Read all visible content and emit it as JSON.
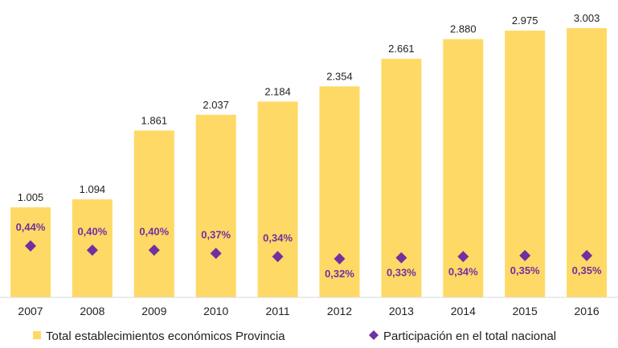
{
  "chart_data": {
    "type": "bar",
    "categories": [
      "2007",
      "2008",
      "2009",
      "2010",
      "2011",
      "2012",
      "2013",
      "2014",
      "2015",
      "2016"
    ],
    "series": [
      {
        "name": "Total establecimientos económicos Provincia",
        "type": "bar",
        "values": [
          1005,
          1094,
          1861,
          2037,
          2184,
          2354,
          2661,
          2880,
          2975,
          3003
        ],
        "labels": [
          "1.005",
          "1.094",
          "1.861",
          "2.037",
          "2.184",
          "2.354",
          "2.661",
          "2.880",
          "2.975",
          "3.003"
        ],
        "color": "#FFD966"
      },
      {
        "name": "Participación en el total nacional",
        "type": "scatter",
        "marker": "diamond",
        "values": [
          0.44,
          0.4,
          0.4,
          0.37,
          0.34,
          0.32,
          0.33,
          0.34,
          0.35,
          0.35
        ],
        "labels": [
          "0,44%",
          "0,40%",
          "0,40%",
          "0,37%",
          "0,34%",
          "0,32%",
          "0,33%",
          "0,34%",
          "0,35%",
          "0,35%"
        ],
        "color": "#7030A0"
      }
    ],
    "legend_position": "bottom",
    "grid": false
  }
}
